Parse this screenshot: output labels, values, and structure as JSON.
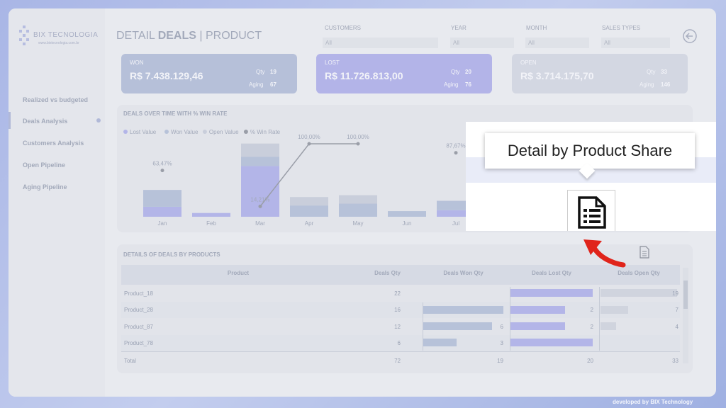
{
  "logo": {
    "name": "BIX TECNOLOGIA",
    "url": "www.bixtecnologia.com.br"
  },
  "nav": [
    "Realized vs budgeted",
    "Deals Analysis",
    "Customers Analysis",
    "Open Pipeline",
    "Aging Pipeline"
  ],
  "header": {
    "title_prefix": "DETAIL",
    "title_bold": "DEALS",
    "title_suffix": "| PRODUCT"
  },
  "filters": [
    {
      "label": "CUSTOMERS",
      "value": "All"
    },
    {
      "label": "YEAR",
      "value": "All"
    },
    {
      "label": "MONTH",
      "value": "All"
    },
    {
      "label": "SALES TYPES",
      "value": "All"
    }
  ],
  "kpis": [
    {
      "label": "WON",
      "value": "R$ 7.438.129,46",
      "qty_label": "Qty",
      "qty": 19,
      "aging_label": "Aging",
      "aging": 67
    },
    {
      "label": "LOST",
      "value": "R$ 11.726.813,00",
      "qty_label": "Qty",
      "qty": 20,
      "aging_label": "Aging",
      "aging": 76
    },
    {
      "label": "OPEN",
      "value": "R$ 3.714.175,70",
      "qty_label": "Qty",
      "qty": 33,
      "aging_label": "Aging",
      "aging": 146
    }
  ],
  "deals_chart": {
    "type": "bar",
    "title": "DEALS OVER TIME WITH % WIN RATE",
    "categories": [
      "Jan",
      "Feb",
      "Mar",
      "Apr",
      "May",
      "Jun",
      "Jul"
    ],
    "series": [
      {
        "name": "Lost Value",
        "color": "#b3b5e8",
        "values": [
          0.53,
          0.2,
          2.7,
          0,
          0,
          0,
          0.35
        ]
      },
      {
        "name": "Won Value",
        "color": "#b7c2d9",
        "values": [
          0.9,
          0,
          0.5,
          0.6,
          0.7,
          0.3,
          0.5
        ]
      },
      {
        "name": "Open Value",
        "color": "#c9cedb",
        "values": [
          0,
          0,
          0.7,
          0.45,
          0.45,
          0,
          0
        ]
      },
      {
        "name": "% Win Rate",
        "color": "#9a9ea8",
        "axis": "y2",
        "values": [
          63.47,
          null,
          14.21,
          100,
          100,
          null,
          87.67
        ],
        "value_labels": [
          "63,47%",
          null,
          "14,21%",
          "100,00%",
          "100,00%",
          null,
          "87,67%"
        ]
      }
    ],
    "ylim": [
      0,
      4
    ],
    "y2lim": [
      0,
      100
    ]
  },
  "table": {
    "title": "DETAILS OF DEALS BY PRODUCTS",
    "columns": [
      "Product",
      "Deals Qty",
      "Deals Won Qty",
      "Deals Lost Qty",
      "Deals Open Qty"
    ],
    "rows": [
      [
        "Product_18",
        22,
        null,
        null,
        19
      ],
      [
        "Product_28",
        16,
        null,
        2,
        7
      ],
      [
        "Product_87",
        12,
        6,
        2,
        4
      ],
      [
        "Product_78",
        6,
        3,
        null,
        null
      ]
    ],
    "total": [
      "Total",
      72,
      19,
      20,
      33
    ]
  },
  "tooltip": "Detail by Product Share",
  "footer": "developed by BIX Technology"
}
